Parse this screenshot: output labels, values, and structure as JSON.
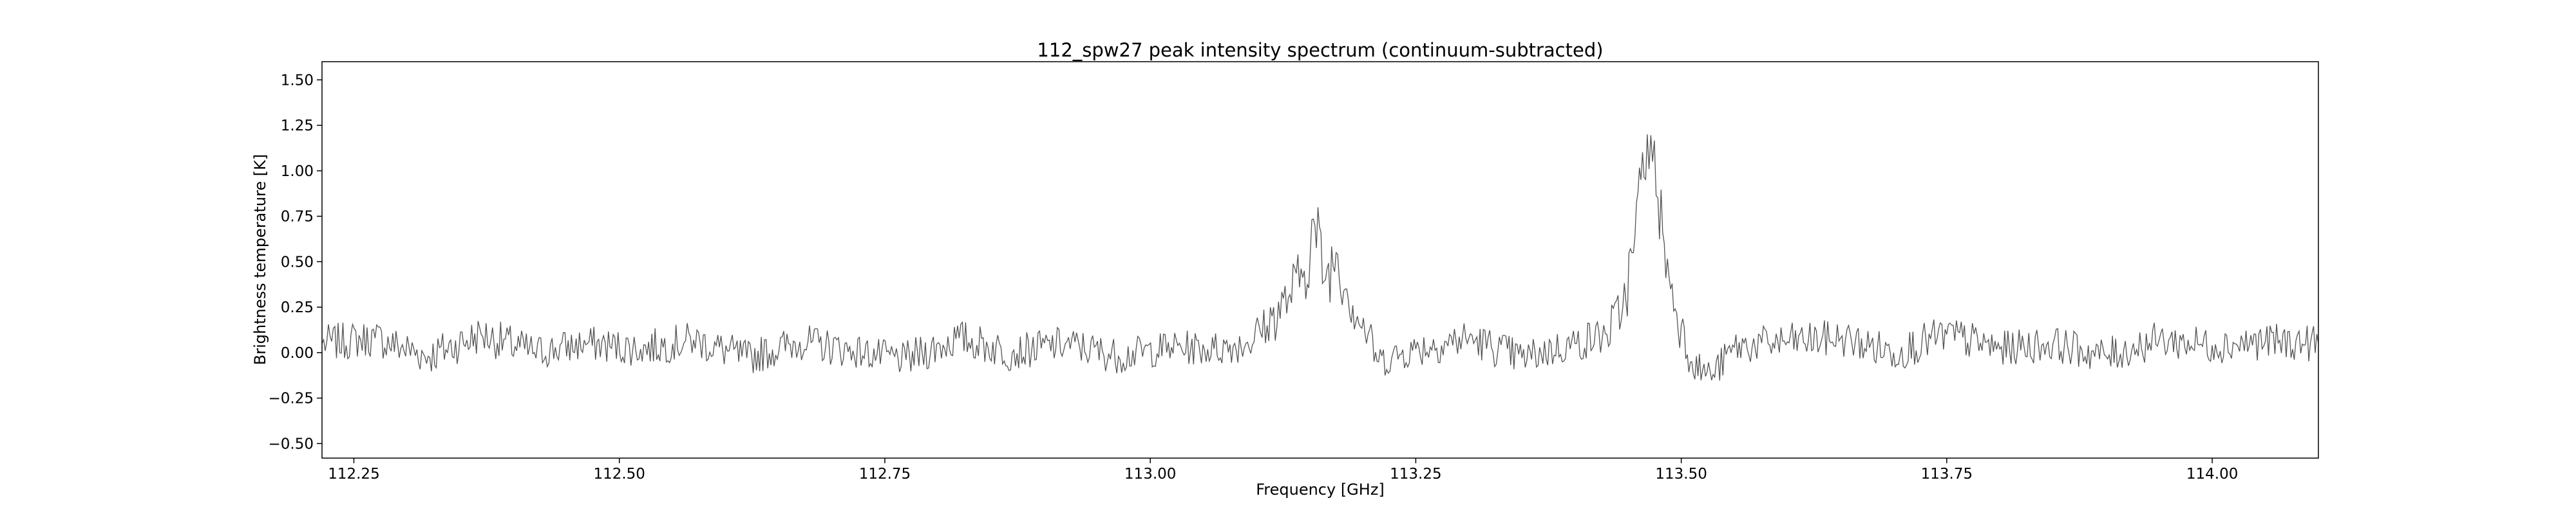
{
  "chart_data": {
    "type": "line",
    "title": "112_spw27 peak intensity spectrum (continuum-subtracted)",
    "xlabel": "Frequency [GHz]",
    "ylabel": "Brightness temperature [K]",
    "xlim": [
      112.22,
      114.1
    ],
    "ylim": [
      -0.58,
      1.6
    ],
    "xticks": [
      112.25,
      112.5,
      112.75,
      113.0,
      113.25,
      113.5,
      113.75,
      114.0
    ],
    "xtick_labels": [
      "112.25",
      "112.50",
      "112.75",
      "113.00",
      "113.25",
      "113.50",
      "113.75",
      "114.00"
    ],
    "yticks": [
      -0.5,
      -0.25,
      0.0,
      0.25,
      0.5,
      0.75,
      1.0,
      1.25,
      1.5
    ],
    "ytick_labels": [
      "−0.50",
      "−0.25",
      "0.00",
      "0.25",
      "0.50",
      "0.75",
      "1.00",
      "1.25",
      "1.50"
    ],
    "grid": false,
    "line_color": "#555555",
    "series": [
      {
        "x": [
          112.22,
          112.27,
          112.32,
          112.37,
          112.42,
          112.47,
          112.52,
          112.57,
          112.62,
          112.67,
          112.72,
          112.77,
          112.82,
          112.87,
          112.92,
          112.97,
          113.02,
          113.06,
          113.09,
          113.11,
          113.13,
          113.145,
          113.155,
          113.165,
          113.175,
          113.185,
          113.195,
          113.205,
          113.215,
          113.25,
          113.3,
          113.35,
          113.4,
          113.43,
          113.445,
          113.455,
          113.462,
          113.468,
          113.473,
          113.478,
          113.484,
          113.49,
          113.5,
          113.51,
          113.52,
          113.53,
          113.55,
          113.6,
          113.65,
          113.7,
          113.75,
          113.8,
          113.85,
          113.9,
          113.95,
          114.0,
          114.05,
          114.1
        ],
        "y": [
          0.05,
          0.08,
          -0.02,
          0.1,
          0.0,
          0.05,
          0.02,
          0.07,
          -0.03,
          0.06,
          0.01,
          -0.04,
          0.08,
          0.0,
          0.05,
          -0.02,
          0.03,
          0.02,
          0.05,
          0.15,
          0.3,
          0.45,
          0.7,
          0.4,
          0.55,
          0.35,
          0.2,
          0.1,
          -0.05,
          0.02,
          0.08,
          -0.03,
          0.05,
          0.1,
          0.25,
          0.55,
          0.95,
          1.2,
          1.05,
          0.85,
          0.6,
          0.35,
          0.15,
          -0.05,
          -0.1,
          -0.12,
          0.03,
          0.06,
          0.08,
          0.0,
          0.1,
          0.02,
          0.05,
          -0.02,
          0.07,
          0.04,
          0.06,
          0.05
        ]
      }
    ]
  }
}
